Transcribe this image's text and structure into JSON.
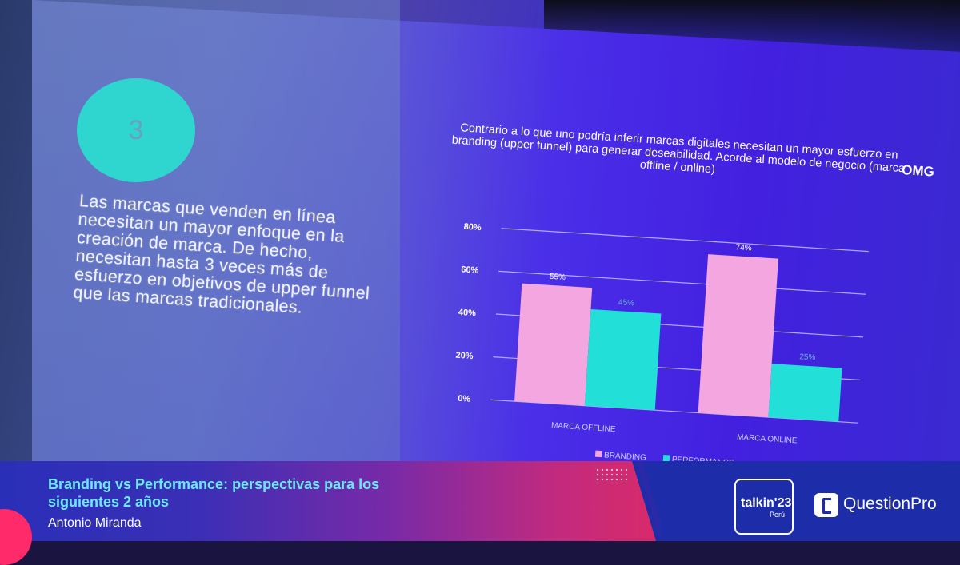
{
  "slide": {
    "number": "3",
    "body_text": "Las marcas que venden en línea necesitan un mayor enfoque en la creación de marca. De hecho, necesitan hasta 3 veces más de esfuerzo en objetivos de upper funnel que las marcas tradicionales.",
    "logo": "OMG"
  },
  "chart_data": {
    "type": "bar",
    "title": "Contrario a lo que uno podría inferir marcas digitales necesitan un mayor esfuerzo en branding (upper funnel) para generar deseabilidad. Acorde al modelo de negocio (marca offline / online)",
    "categories": [
      "MARCA OFFLINE",
      "MARCA ONLINE"
    ],
    "series": [
      {
        "name": "BRANDING",
        "color": "#f4a6e0",
        "values": [
          55,
          74
        ],
        "labels": [
          "55%",
          "74%"
        ]
      },
      {
        "name": "PERFORMANCE",
        "color": "#22e0d8",
        "values": [
          45,
          25
        ],
        "labels": [
          "45%",
          "25%"
        ]
      }
    ],
    "yticks": [
      "80%",
      "60%",
      "40%",
      "20%",
      "0%"
    ],
    "ylim": [
      0,
      80
    ],
    "grid": true,
    "legend": "bottom"
  },
  "footer": {
    "talk_title": "Branding vs Performance: perspectivas para los siguientes 2 años",
    "speaker": "Antonio Miranda",
    "event_name": "talkin'23",
    "event_location": "Perú",
    "sponsor": "QuestionPro"
  }
}
